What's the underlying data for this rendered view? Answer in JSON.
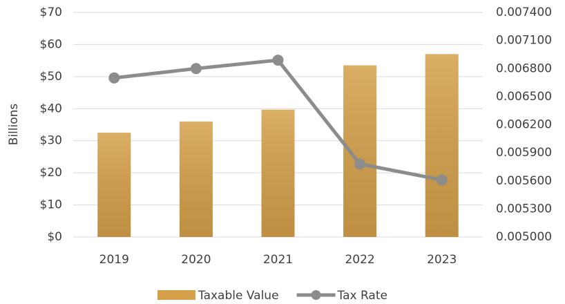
{
  "chart_data": {
    "type": "bar",
    "y_label": "Billions",
    "categories": [
      "2019",
      "2020",
      "2021",
      "2022",
      "2023"
    ],
    "series": [
      {
        "name": "Taxable Value",
        "type": "bar",
        "color": "#d4a04a",
        "values": [
          32.5,
          36,
          39.7,
          53.5,
          57
        ]
      },
      {
        "name": "Tax Rate",
        "type": "line",
        "axis": "y2",
        "color": "#8c8c8c",
        "values": [
          0.0067,
          0.0068,
          0.00689,
          0.00578,
          0.00561
        ]
      }
    ],
    "ylim": [
      0,
      70
    ],
    "yticks": [
      {
        "value": 0,
        "label": "$0"
      },
      {
        "value": 10,
        "label": "$10"
      },
      {
        "value": 20,
        "label": "$20"
      },
      {
        "value": 30,
        "label": "$30"
      },
      {
        "value": 40,
        "label": "$40"
      },
      {
        "value": 50,
        "label": "$50"
      },
      {
        "value": 60,
        "label": "$60"
      },
      {
        "value": 70,
        "label": "$70"
      }
    ],
    "y2lim": [
      0.005,
      0.0074
    ],
    "y2ticks": [
      {
        "value": 0.005,
        "label": "0.005000"
      },
      {
        "value": 0.0053,
        "label": "0.005300"
      },
      {
        "value": 0.0056,
        "label": "0.005600"
      },
      {
        "value": 0.0059,
        "label": "0.005900"
      },
      {
        "value": 0.0062,
        "label": "0.006200"
      },
      {
        "value": 0.0065,
        "label": "0.006500"
      },
      {
        "value": 0.0068,
        "label": "0.006800"
      },
      {
        "value": 0.0071,
        "label": "0.007100"
      },
      {
        "value": 0.0074,
        "label": "0.007400"
      }
    ],
    "grid": true,
    "legend": "bottom"
  }
}
